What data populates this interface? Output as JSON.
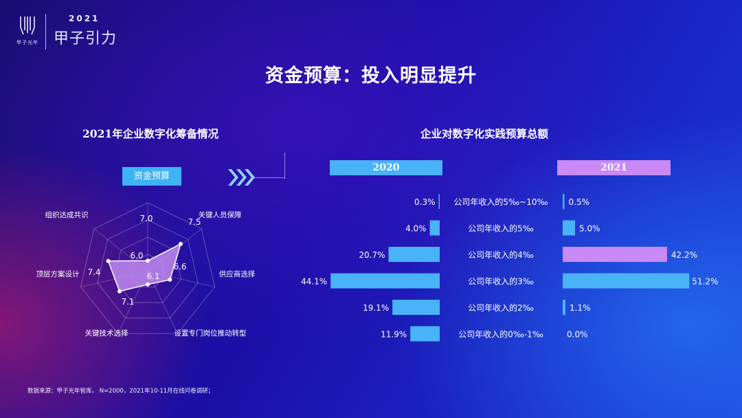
{
  "logo": {
    "cn": "甲子光年",
    "year": "2021",
    "name": "甲子引力"
  },
  "title": "资金预算：投入明显提升",
  "left": {
    "subtitle": "2021年企业数字化筹备情况",
    "tag": "资金预算"
  },
  "right": {
    "subtitle": "企业对数字化实践预算总额"
  },
  "colors": {
    "bar2020": "#49b3f7",
    "bar2021": "#49b3f7",
    "highlight2021": "#c98af7",
    "radarFill": "#c08af0"
  },
  "source": "数据来源：甲子光年智库， N=2000，2021年10-11月在线问卷调研；",
  "chart_data": [
    {
      "type": "radar",
      "title": "2021年企业数字化筹备情况",
      "axes": [
        "组织达成共识",
        "关键人员保障",
        "供应商选择",
        "设置专门岗位推动转型",
        "关键技术选择",
        "顶层方案设计"
      ],
      "series": [
        {
          "values": [
            6.0,
            7.5,
            6.6,
            6.1,
            7.1,
            7.4
          ]
        }
      ],
      "labels": [
        "6.0",
        "7.5",
        "6.6",
        "6.1",
        "7.1",
        "7.4"
      ],
      "extra_label": "7.0",
      "range": [
        5.5,
        7.8
      ]
    },
    {
      "type": "bar",
      "orientation": "horizontal",
      "title": "企业对数字化实践预算总额",
      "categories": [
        "公司年收入的5‰~10‰",
        "公司年收入的5‰",
        "公司年收入的4‰",
        "公司年收入的3‰",
        "公司年收入的2‰",
        "公司年收入的0‰-1‰"
      ],
      "series": [
        {
          "name": "2020",
          "values": [
            0.3,
            4.0,
            20.7,
            44.1,
            19.1,
            11.9
          ],
          "labels": [
            "0.3%",
            "4.0%",
            "20.7%",
            "44.1%",
            "19.1%",
            "11.9%"
          ]
        },
        {
          "name": "2021",
          "values": [
            0.5,
            5.0,
            42.2,
            51.2,
            1.1,
            0.0
          ],
          "labels": [
            "0.5%",
            "5.0%",
            "42.2%",
            "51.2%",
            "1.1%",
            "0.0%"
          ]
        }
      ],
      "xlim": [
        0,
        60
      ]
    }
  ]
}
